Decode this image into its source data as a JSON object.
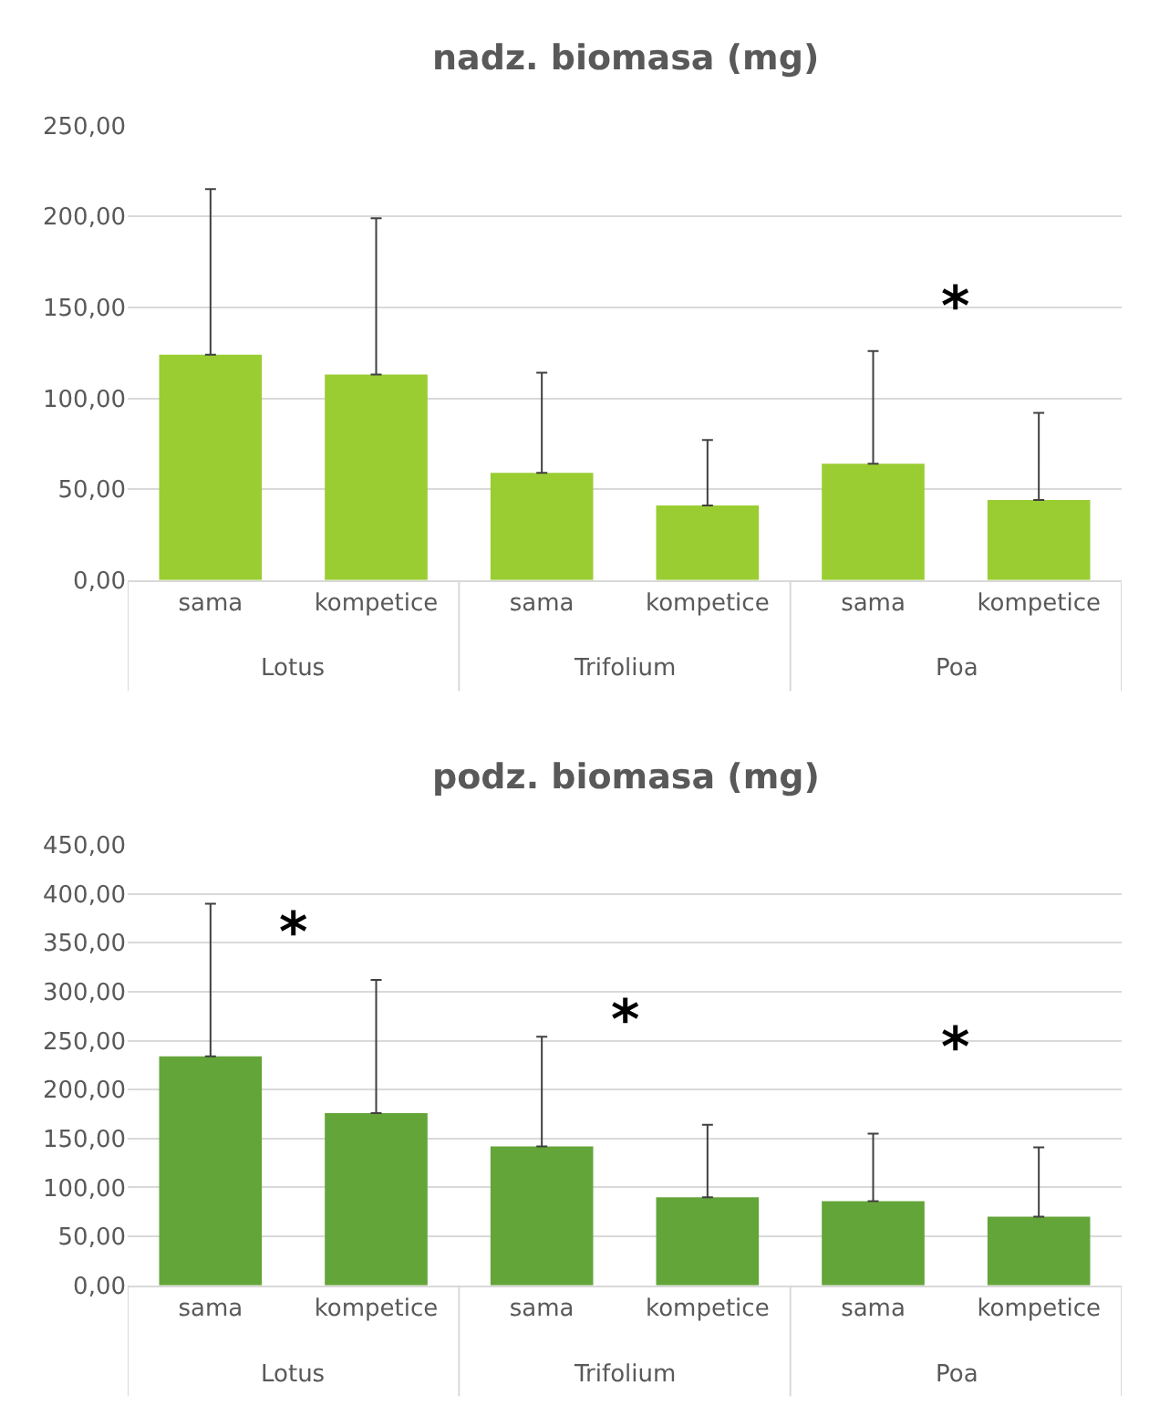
{
  "chart_data": [
    {
      "type": "bar",
      "title": "nadz. biomasa (mg)",
      "categories": [
        "Lotus",
        "Trifolium",
        "Poa"
      ],
      "series": [
        {
          "name": "sama",
          "color": "#9acd32",
          "values": [
            124,
            59,
            64
          ],
          "errors": [
            [
              124,
              215
            ],
            [
              59,
              114
            ],
            [
              64,
              126
            ]
          ]
        },
        {
          "name": "kompetice",
          "color": "#9acd32",
          "values": [
            113,
            41,
            44
          ],
          "errors": [
            [
              113,
              199
            ],
            [
              41,
              77
            ],
            [
              44,
              92
            ]
          ]
        }
      ],
      "ylim": [
        0,
        250
      ],
      "yticks": [
        {
          "value": 0,
          "label": "0,00"
        },
        {
          "value": 50,
          "label": "50,00"
        },
        {
          "value": 100,
          "label": "100,00"
        },
        {
          "value": 150,
          "label": "150,00"
        },
        {
          "value": 200,
          "label": "200,00"
        },
        {
          "value": 250,
          "label": "250,00"
        }
      ],
      "grid": "y",
      "legend": false,
      "annotations": [
        "*"
      ]
    },
    {
      "type": "bar",
      "title": "podz. biomasa (mg)",
      "categories": [
        "Lotus",
        "Trifolium",
        "Poa"
      ],
      "series": [
        {
          "name": "sama",
          "color": "#63a538",
          "values": [
            234,
            142,
            86
          ],
          "errors": [
            [
              234,
              390
            ],
            [
              142,
              254
            ],
            [
              86,
              155
            ]
          ]
        },
        {
          "name": "kompetice",
          "color": "#63a538",
          "values": [
            176,
            90,
            70
          ],
          "errors": [
            [
              176,
              312
            ],
            [
              90,
              164
            ],
            [
              70,
              141
            ]
          ]
        }
      ],
      "ylim": [
        0,
        450
      ],
      "yticks": [
        {
          "value": 0,
          "label": "0,00"
        },
        {
          "value": 50,
          "label": "50,00"
        },
        {
          "value": 100,
          "label": "100,00"
        },
        {
          "value": 150,
          "label": "150,00"
        },
        {
          "value": 200,
          "label": "200,00"
        },
        {
          "value": 250,
          "label": "250,00"
        },
        {
          "value": 300,
          "label": "300,00"
        },
        {
          "value": 350,
          "label": "350,00"
        },
        {
          "value": 400,
          "label": "400,00"
        },
        {
          "value": 450,
          "label": "450,00"
        }
      ],
      "grid": "y",
      "legend": false,
      "annotations": [
        "*",
        "*",
        "*"
      ]
    }
  ]
}
